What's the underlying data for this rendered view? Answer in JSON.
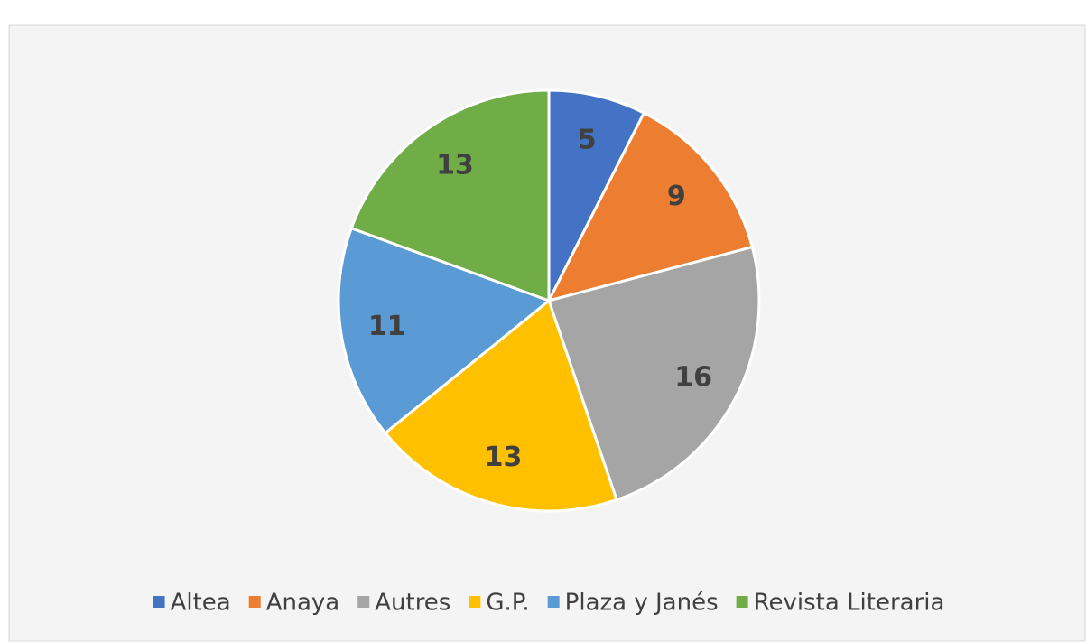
{
  "chart_data": {
    "type": "pie",
    "categories": [
      "Altea",
      "Anaya",
      "Autres",
      "G.P.",
      "Plaza y Janés",
      "Revista Literaria"
    ],
    "values": [
      5,
      9,
      16,
      13,
      11,
      13
    ],
    "colors": [
      "#4472c4",
      "#ed7d31",
      "#a5a5a5",
      "#ffc000",
      "#5b9bd5",
      "#70ad47"
    ],
    "legend": "bottom"
  }
}
